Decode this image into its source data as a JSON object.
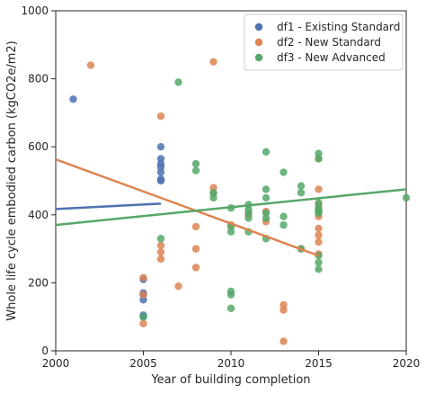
{
  "chart_data": {
    "type": "scatter",
    "title": "",
    "xlabel": "Year of building completion",
    "ylabel": "Whole life cycle embodied carbon (kgCO2e/m2)",
    "xlim": [
      2000,
      2020
    ],
    "ylim": [
      0,
      1000
    ],
    "xticks": [
      "2000",
      "2005",
      "2010",
      "2015",
      "2020"
    ],
    "yticks": [
      "0",
      "200",
      "400",
      "600",
      "800",
      "1000"
    ],
    "grid": false,
    "legend_position": "top-right",
    "series": [
      {
        "name": "df1 - Existing Standard",
        "color": "#4c72b0",
        "points": [
          [
            2001,
            740
          ],
          [
            2005,
            210
          ],
          [
            2005,
            170
          ],
          [
            2005,
            165
          ],
          [
            2005,
            150
          ],
          [
            2005,
            105
          ],
          [
            2005,
            100
          ],
          [
            2006,
            600
          ],
          [
            2006,
            565
          ],
          [
            2006,
            550
          ],
          [
            2006,
            540
          ],
          [
            2006,
            525
          ],
          [
            2006,
            505
          ],
          [
            2006,
            500
          ]
        ],
        "trend": [
          [
            2000,
            417
          ],
          [
            2006,
            433
          ]
        ]
      },
      {
        "name": "df2 - New Standard",
        "color": "#dd8452",
        "points": [
          [
            2002,
            840
          ],
          [
            2005,
            215
          ],
          [
            2005,
            165
          ],
          [
            2005,
            80
          ],
          [
            2006,
            690
          ],
          [
            2006,
            310
          ],
          [
            2006,
            290
          ],
          [
            2006,
            270
          ],
          [
            2007,
            190
          ],
          [
            2008,
            365
          ],
          [
            2008,
            300
          ],
          [
            2008,
            245
          ],
          [
            2009,
            850
          ],
          [
            2009,
            480
          ],
          [
            2009,
            465
          ],
          [
            2010,
            370
          ],
          [
            2011,
            400
          ],
          [
            2012,
            410
          ],
          [
            2012,
            380
          ],
          [
            2013,
            135
          ],
          [
            2013,
            120
          ],
          [
            2013,
            28
          ],
          [
            2014,
            300
          ],
          [
            2015,
            565
          ],
          [
            2015,
            475
          ],
          [
            2015,
            430
          ],
          [
            2015,
            410
          ],
          [
            2015,
            395
          ],
          [
            2015,
            360
          ],
          [
            2015,
            340
          ],
          [
            2015,
            320
          ],
          [
            2015,
            285
          ]
        ],
        "trend": [
          [
            2000,
            563
          ],
          [
            2015,
            280
          ]
        ]
      },
      {
        "name": "df3 - New Advanced",
        "color": "#55a868",
        "points": [
          [
            2005,
            100
          ],
          [
            2006,
            330
          ],
          [
            2007,
            790
          ],
          [
            2008,
            550
          ],
          [
            2008,
            530
          ],
          [
            2009,
            465
          ],
          [
            2009,
            450
          ],
          [
            2010,
            420
          ],
          [
            2010,
            365
          ],
          [
            2010,
            350
          ],
          [
            2010,
            175
          ],
          [
            2010,
            165
          ],
          [
            2010,
            125
          ],
          [
            2011,
            430
          ],
          [
            2011,
            415
          ],
          [
            2011,
            405
          ],
          [
            2011,
            390
          ],
          [
            2011,
            350
          ],
          [
            2012,
            585
          ],
          [
            2012,
            475
          ],
          [
            2012,
            450
          ],
          [
            2012,
            405
          ],
          [
            2012,
            390
          ],
          [
            2012,
            330
          ],
          [
            2013,
            525
          ],
          [
            2013,
            395
          ],
          [
            2013,
            370
          ],
          [
            2014,
            485
          ],
          [
            2014,
            465
          ],
          [
            2014,
            300
          ],
          [
            2015,
            580
          ],
          [
            2015,
            565
          ],
          [
            2015,
            435
          ],
          [
            2015,
            420
          ],
          [
            2015,
            415
          ],
          [
            2015,
            410
          ],
          [
            2015,
            405
          ],
          [
            2015,
            280
          ],
          [
            2015,
            260
          ],
          [
            2015,
            240
          ],
          [
            2020,
            450
          ]
        ],
        "trend": [
          [
            2000,
            370
          ],
          [
            2020,
            475
          ]
        ]
      }
    ]
  }
}
